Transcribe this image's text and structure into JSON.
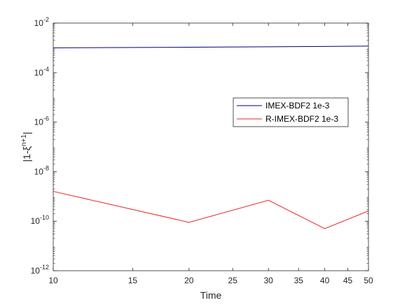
{
  "chart_data": {
    "type": "line",
    "xlabel": "Time",
    "ylabel": "|1-ξ",
    "ylabel_sup": "n+1",
    "ylabel_end": "|",
    "xscale": "log",
    "yscale": "log",
    "xlim": [
      10,
      50
    ],
    "ylim": [
      1e-12,
      0.01
    ],
    "x_ticks": [
      10,
      15,
      20,
      25,
      30,
      35,
      40,
      45,
      50
    ],
    "x_tick_labels": [
      "10",
      "15",
      "20",
      "25",
      "30",
      "35",
      "40",
      "45",
      "50"
    ],
    "y_ticks": [
      1e-12,
      1e-10,
      1e-08,
      1e-06,
      0.0001,
      0.01
    ],
    "y_tick_labels": [
      {
        "base": "10",
        "exp": "-12"
      },
      {
        "base": "10",
        "exp": "-10"
      },
      {
        "base": "10",
        "exp": "-8"
      },
      {
        "base": "10",
        "exp": "-6"
      },
      {
        "base": "10",
        "exp": "-4"
      },
      {
        "base": "10",
        "exp": "-2"
      }
    ],
    "grid": false,
    "legend_position": "right-center",
    "series": [
      {
        "name": "IMEX-BDF2 1e-3",
        "color": "#00007a",
        "x": [
          10,
          20,
          30,
          40,
          50
        ],
        "y": [
          0.001,
          0.00106,
          0.0011,
          0.00114,
          0.00118
        ]
      },
      {
        "name": "R-IMEX-BDF2 1e-3",
        "color": "#e8262a",
        "x": [
          10,
          20,
          30,
          40,
          50
        ],
        "y": [
          1.6e-09,
          9e-11,
          7e-10,
          5e-11,
          2.6e-10
        ]
      }
    ]
  }
}
